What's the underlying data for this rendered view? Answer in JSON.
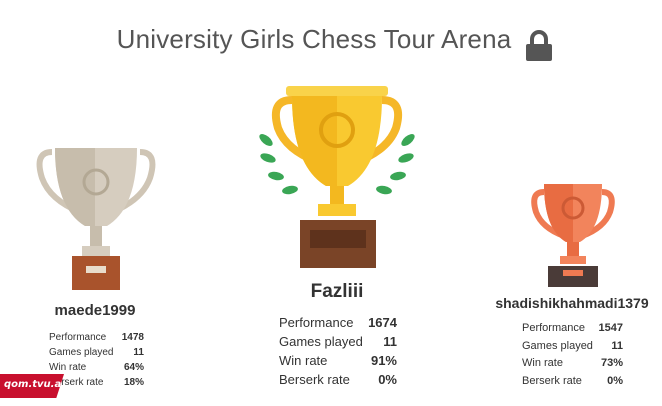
{
  "header": {
    "title": "University Girls Chess Tour Arena"
  },
  "podium": [
    {
      "name": "maede1999",
      "stats": [
        [
          "Performance",
          "1478"
        ],
        [
          "Games played",
          "11"
        ],
        [
          "Win rate",
          "64%"
        ],
        [
          "Berserk rate",
          "18%"
        ]
      ]
    },
    {
      "name": "Fazliii",
      "stats": [
        [
          "Performance",
          "1674"
        ],
        [
          "Games played",
          "11"
        ],
        [
          "Win rate",
          "91%"
        ],
        [
          "Berserk rate",
          "0%"
        ]
      ]
    },
    {
      "name": "shadishikhahmadi1379",
      "stats": [
        [
          "Performance",
          "1547"
        ],
        [
          "Games played",
          "11"
        ],
        [
          "Win rate",
          "73%"
        ],
        [
          "Berserk rate",
          "0%"
        ]
      ]
    }
  ],
  "watermark": "qom.tvu.ac.ir"
}
